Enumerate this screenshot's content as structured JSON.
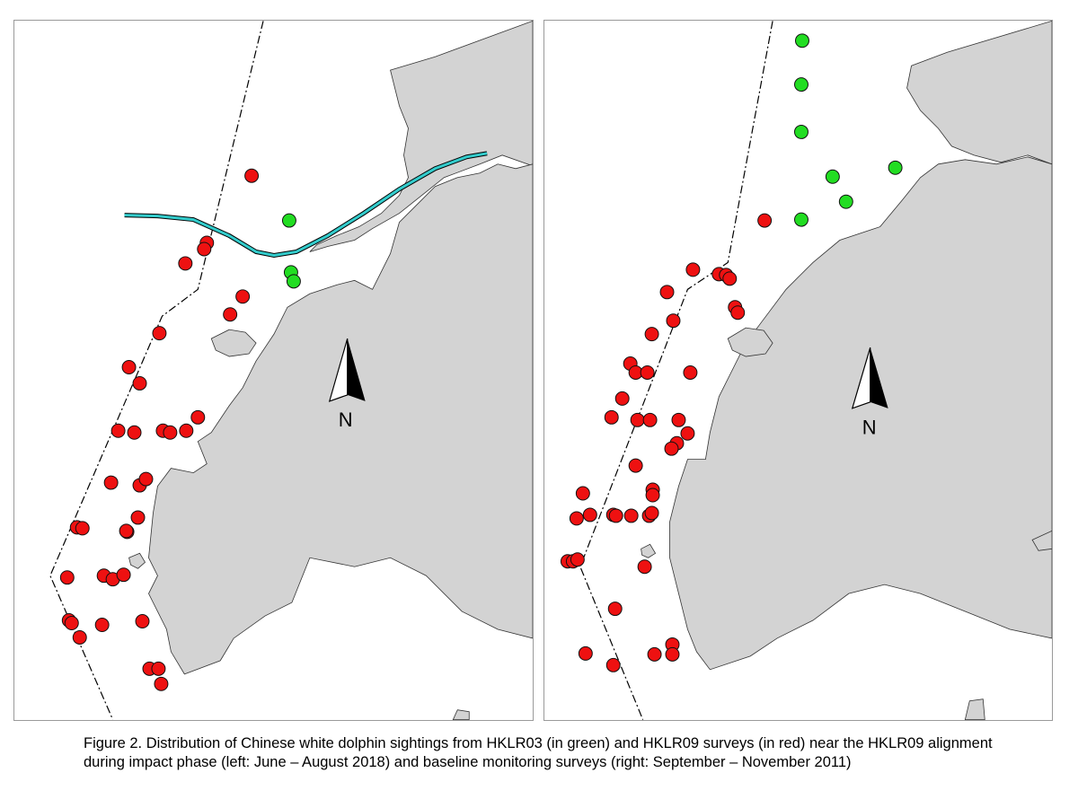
{
  "figure": {
    "caption": "Figure 2.  Distribution of Chinese white dolphin sightings from HKLR03 (in green) and HKLR09 surveys (in red) near the HKLR09 alignment during impact phase (left: June – August 2018) and baseline monitoring surveys (right: September – November 2011)"
  },
  "colors": {
    "land": "#d3d3d3",
    "water": "#ffffff",
    "hklr03": "#22dd22",
    "hklr09": "#ee1111",
    "alignment": "#33cccc",
    "boundary": "#000000"
  },
  "legend_semantics": {
    "green": "HKLR03",
    "red": "HKLR09"
  },
  "panels": [
    {
      "id": "left",
      "north_label": "N",
      "shows_alignment": true
    },
    {
      "id": "right",
      "north_label": "N",
      "shows_alignment": false
    }
  ]
}
